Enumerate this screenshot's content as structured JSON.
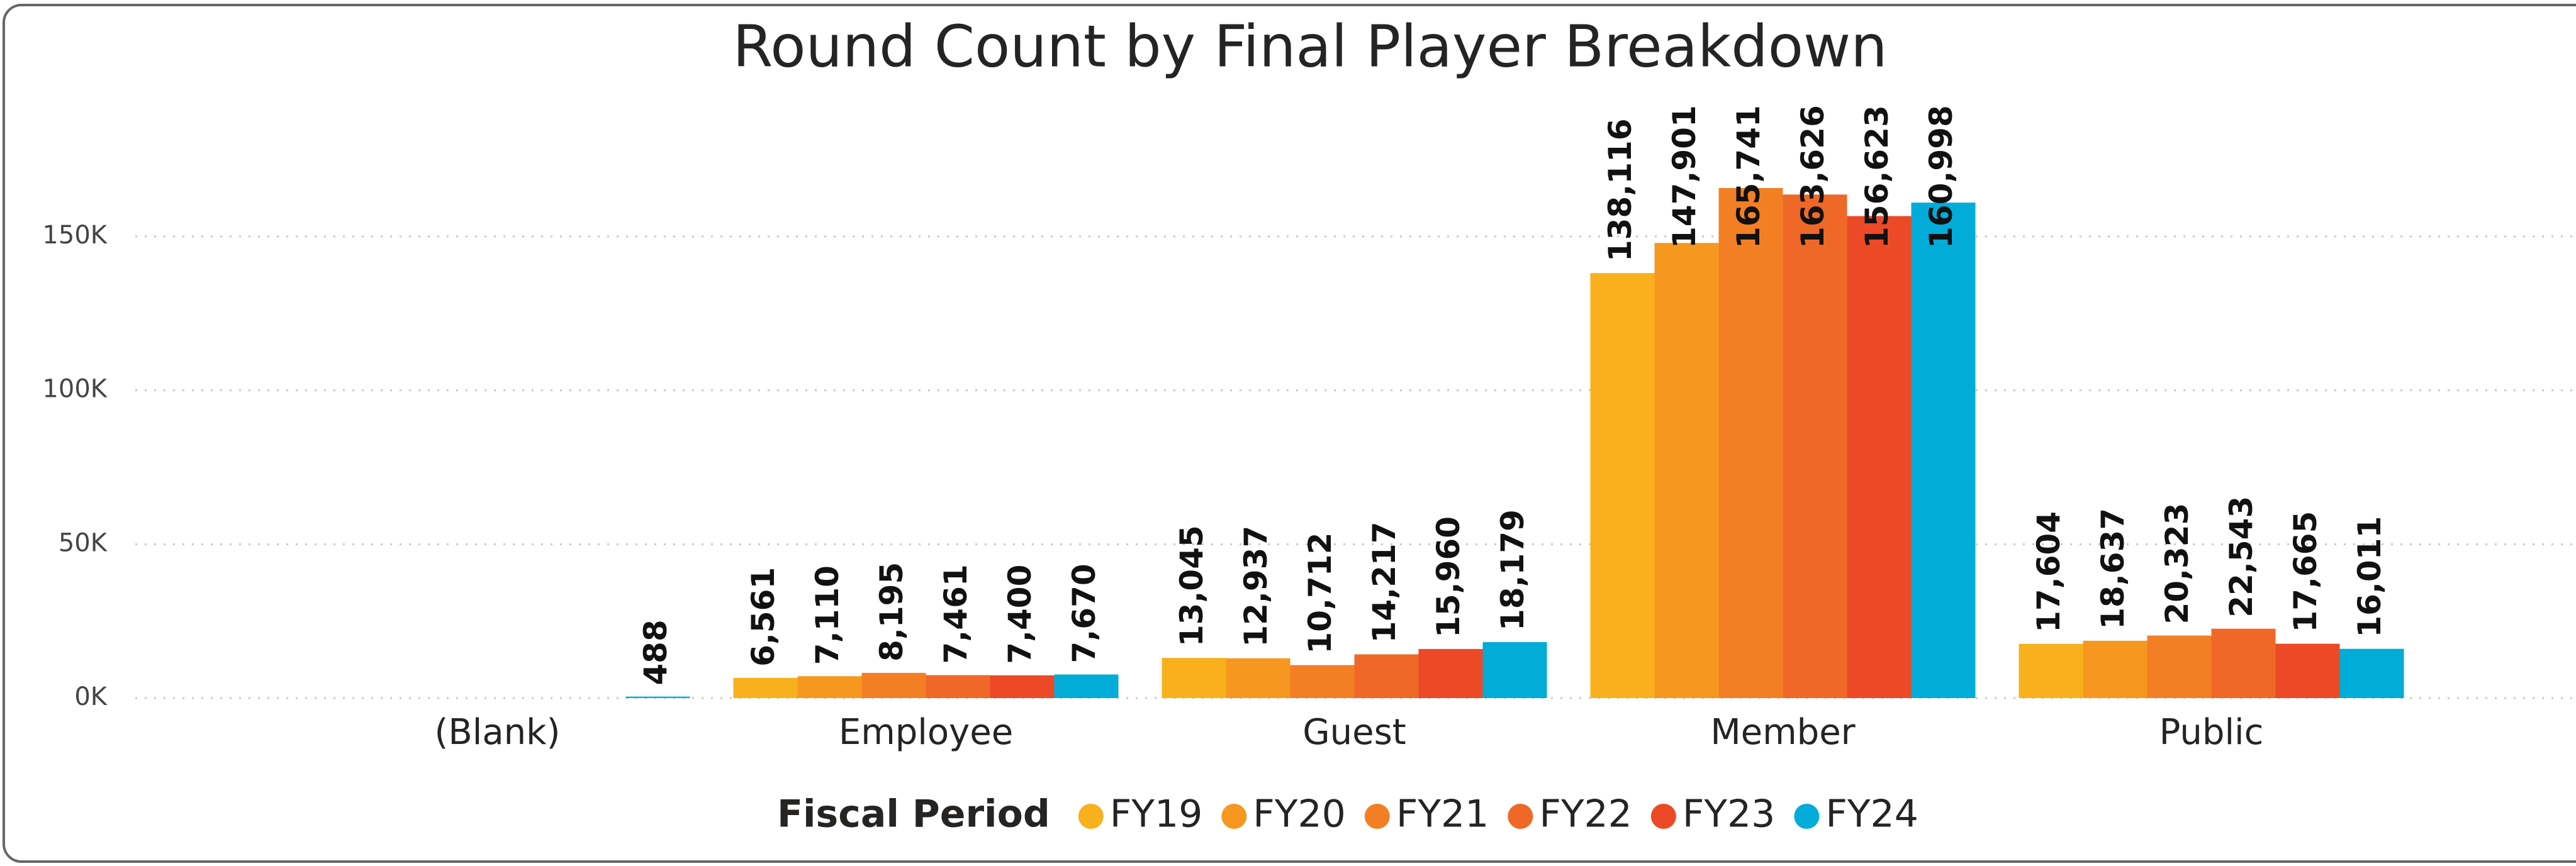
{
  "chart_data": {
    "type": "bar",
    "title": "Round Count by Final Player Breakdown",
    "categories": [
      "(Blank)",
      "Employee",
      "Guest",
      "Member",
      "Public"
    ],
    "legend_title": "Fiscal Period",
    "series": [
      {
        "name": "FY19",
        "color": "#F8B11C",
        "values": [
          null,
          6561,
          13045,
          138116,
          17604
        ],
        "value_labels": [
          null,
          "6,561",
          "13,045",
          "138,116",
          "17,604"
        ]
      },
      {
        "name": "FY20",
        "color": "#F6981F",
        "values": [
          null,
          7110,
          12937,
          147901,
          18637
        ],
        "value_labels": [
          null,
          "7,110",
          "12,937",
          "147,901",
          "18,637"
        ]
      },
      {
        "name": "FY21",
        "color": "#F37F25",
        "values": [
          null,
          8195,
          10712,
          165741,
          20323
        ],
        "value_labels": [
          null,
          "8,195",
          "10,712",
          "165,741",
          "20,323"
        ]
      },
      {
        "name": "FY22",
        "color": "#F06827",
        "values": [
          null,
          7461,
          14217,
          163626,
          22543
        ],
        "value_labels": [
          null,
          "7,461",
          "14,217",
          "163,626",
          "22,543"
        ]
      },
      {
        "name": "FY23",
        "color": "#EC4A26",
        "values": [
          null,
          7400,
          15960,
          156623,
          17665
        ],
        "value_labels": [
          null,
          "7,400",
          "15,960",
          "156,623",
          "17,665"
        ]
      },
      {
        "name": "FY24",
        "color": "#01ACD9",
        "values": [
          488,
          7670,
          18179,
          160998,
          16011
        ],
        "value_labels": [
          "488",
          "7,670",
          "18,179",
          "160,998",
          "16,011"
        ]
      }
    ],
    "ylim": [
      0,
      180000
    ],
    "yticks": [
      {
        "value": 0,
        "label": "0K"
      },
      {
        "value": 50000,
        "label": "50K"
      },
      {
        "value": 100000,
        "label": "100K"
      },
      {
        "value": 150000,
        "label": "150K"
      }
    ],
    "grid": true,
    "legend": "bottom"
  }
}
